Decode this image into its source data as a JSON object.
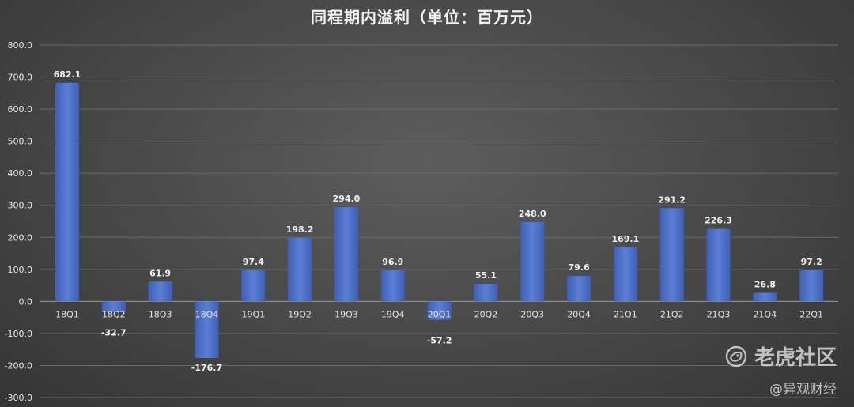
{
  "chart_data": {
    "type": "bar",
    "title": "同程期内溢利（单位：百万元）",
    "categories": [
      "18Q1",
      "18Q2",
      "18Q3",
      "18Q4",
      "19Q1",
      "19Q2",
      "19Q3",
      "19Q4",
      "20Q1",
      "20Q2",
      "20Q3",
      "20Q4",
      "21Q1",
      "21Q2",
      "21Q3",
      "21Q4",
      "22Q1"
    ],
    "values": [
      682.1,
      -32.7,
      61.9,
      -176.7,
      97.4,
      198.2,
      294.0,
      96.9,
      -57.2,
      55.1,
      248.0,
      79.6,
      169.1,
      291.2,
      226.3,
      26.8,
      97.2
    ],
    "ylim": [
      -300,
      800
    ],
    "yticks": [
      "800.0",
      "700.0",
      "600.0",
      "500.0",
      "400.0",
      "300.0",
      "200.0",
      "100.0",
      "0.0",
      "-100.0",
      "-200.0",
      "-300.0"
    ],
    "grid": true,
    "bar_color": "#4a6ec9",
    "xlabel": "",
    "ylabel": ""
  },
  "watermark": {
    "brand": "老虎社区",
    "icon": "tiger-community-logo-icon",
    "source": "@异观财经"
  }
}
